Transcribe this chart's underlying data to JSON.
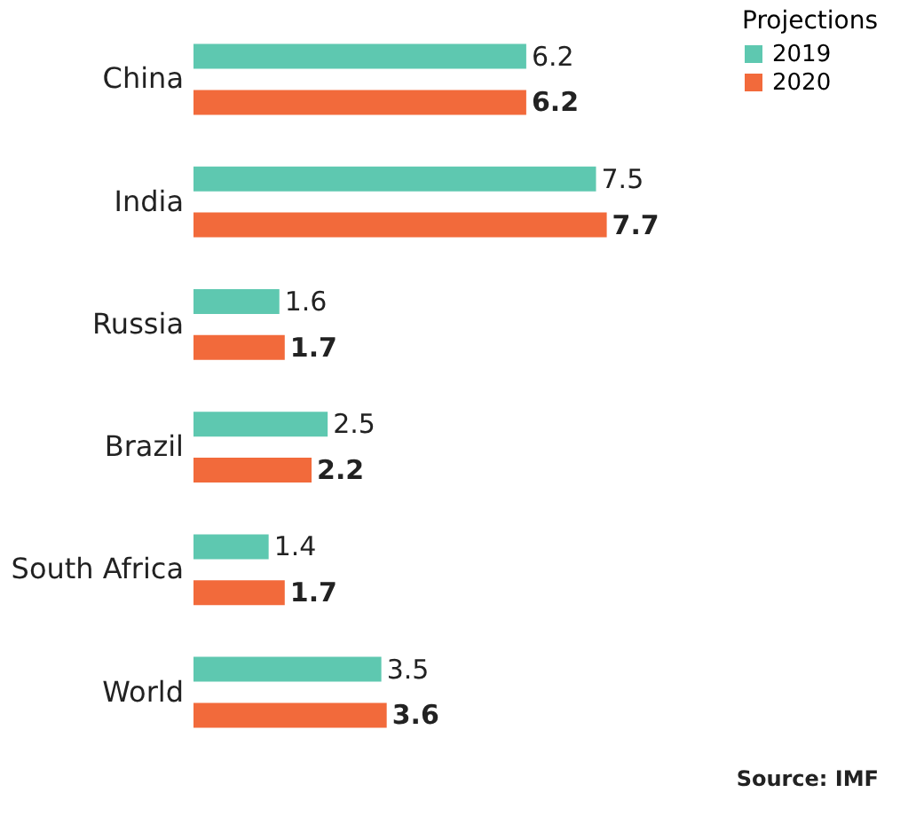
{
  "chart_data": {
    "type": "bar",
    "orientation": "horizontal",
    "categories": [
      "China",
      "India",
      "Russia",
      "Brazil",
      "South Africa",
      "World"
    ],
    "series": [
      {
        "name": "2019",
        "color": "#5ec8b0",
        "values": [
          6.2,
          7.5,
          1.6,
          2.5,
          1.4,
          3.5
        ]
      },
      {
        "name": "2020",
        "color": "#f26a3b",
        "values": [
          6.2,
          7.7,
          1.7,
          2.2,
          1.7,
          3.6
        ]
      }
    ],
    "legend_title": "Projections",
    "legend": "right",
    "data_labels": true,
    "grid": false,
    "annotations": [
      "Source: IMF"
    ]
  }
}
